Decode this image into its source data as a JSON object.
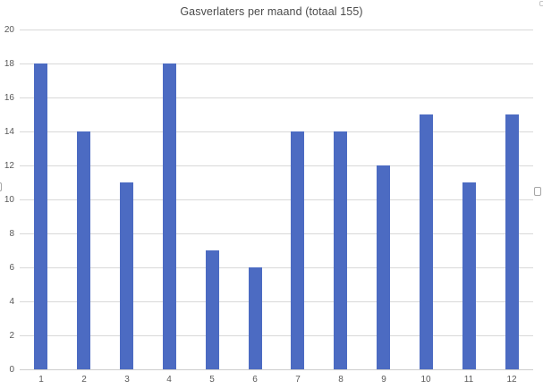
{
  "chart_data": {
    "type": "bar",
    "title": "Gasverlaters per maand (totaal 155)",
    "total": 155,
    "categories": [
      "1",
      "2",
      "3",
      "4",
      "5",
      "6",
      "7",
      "8",
      "9",
      "10",
      "11",
      "12"
    ],
    "values": [
      18,
      14,
      11,
      18,
      7,
      6,
      14,
      14,
      12,
      15,
      11,
      15
    ],
    "xlabel": "",
    "ylabel": "",
    "ylim": [
      0,
      20
    ],
    "ytick_step": 2,
    "ytick_labels": [
      "0",
      "2",
      "4",
      "6",
      "8",
      "10",
      "12",
      "14",
      "16",
      "18",
      "20"
    ],
    "grid": true,
    "legend": false,
    "series_name": "Gasverlaters"
  },
  "colors": {
    "bar": "#4c6bc2",
    "gridline": "#d9d9d9",
    "axis_line": "#cdcdcd",
    "label": "#595959",
    "title": "#4b4b4b",
    "handle_border": "#a6a6a6"
  }
}
